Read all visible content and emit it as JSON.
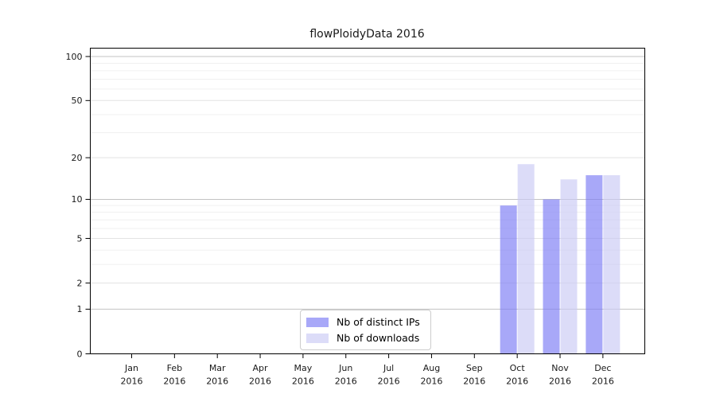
{
  "title": "flowPloidyData 2016",
  "colors": {
    "ips_bar_base": "rgb(122,122,245)",
    "downloads_bar_base": "rgb(202,202,245)",
    "bar_alpha": 0.65,
    "ips_swatch": "#a8a8f8",
    "downloads_swatch": "#dcdcf8",
    "grid_major": "#c3c3c3",
    "grid_mid": "#e3e3e3",
    "grid_minor": "#f0f0f0",
    "axis": "#000000",
    "tick_text": "#1a1a1a"
  },
  "legend": {
    "items": [
      {
        "label": "Nb of distinct IPs",
        "color": "#a8a8f8"
      },
      {
        "label": "Nb of downloads",
        "color": "#dcdcf8"
      }
    ],
    "position": "lower center"
  },
  "chart_data": {
    "type": "bar",
    "title": "flowPloidyData 2016",
    "categories": [
      "Jan 2016",
      "Feb 2016",
      "Mar 2016",
      "Apr 2016",
      "May 2016",
      "Jun 2016",
      "Jul 2016",
      "Aug 2016",
      "Sep 2016",
      "Oct 2016",
      "Nov 2016",
      "Dec 2016"
    ],
    "series": [
      {
        "name": "Nb of distinct IPs",
        "values": [
          0,
          0,
          0,
          0,
          0,
          0,
          0,
          0,
          0,
          9,
          10,
          15
        ]
      },
      {
        "name": "Nb of downloads",
        "values": [
          0,
          0,
          0,
          0,
          0,
          0,
          0,
          0,
          0,
          18,
          14,
          15
        ]
      }
    ],
    "xlabel": "",
    "ylabel": "",
    "y_scale": "log10(value+1)",
    "ylim": [
      0,
      114
    ],
    "y_ticks": [
      0,
      1,
      2,
      5,
      10,
      20,
      50,
      100
    ],
    "y_tick_labels": [
      "0",
      "1",
      "2",
      "5",
      "10",
      "20",
      "50",
      "100"
    ],
    "y_grid_major": [
      1,
      10,
      100
    ],
    "y_grid_mid": [
      2,
      5,
      20,
      50
    ],
    "y_grid_minor": [
      3,
      4,
      6,
      7,
      8,
      9,
      30,
      40,
      60,
      70,
      80,
      90
    ],
    "grid": true,
    "legend_position": "lower center"
  }
}
